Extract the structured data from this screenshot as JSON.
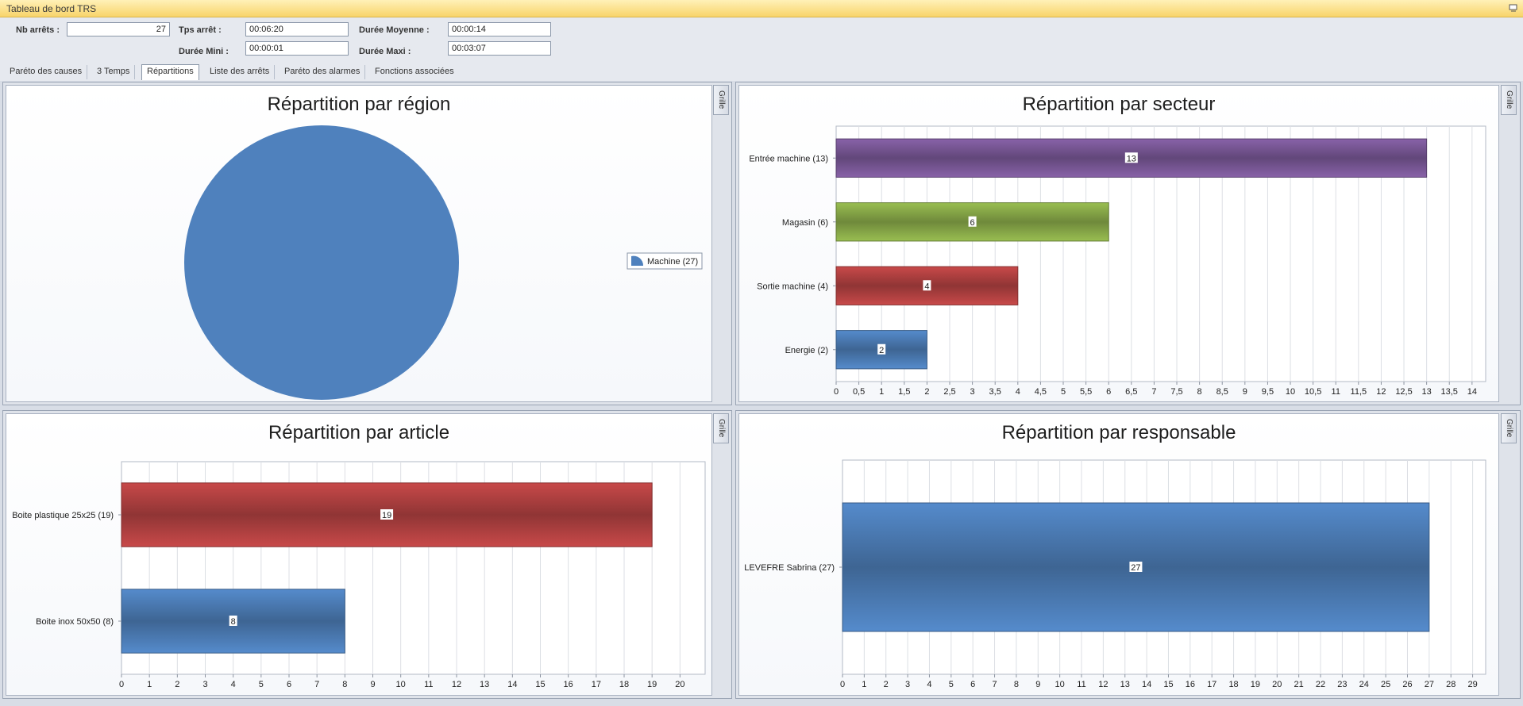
{
  "window": {
    "title": "Tableau de bord TRS"
  },
  "fields": {
    "nb_arrets": {
      "label": "Nb arrêts :",
      "value": "27"
    },
    "tps_arret": {
      "label": "Tps arrêt :",
      "value": "00:06:20"
    },
    "duree_moyenne": {
      "label": "Durée Moyenne :",
      "value": "00:00:14"
    },
    "duree_mini": {
      "label": "Durée Mini :",
      "value": "00:00:01"
    },
    "duree_maxi": {
      "label": "Durée Maxi :",
      "value": "00:03:07"
    }
  },
  "tabs": [
    {
      "label": "Paréto des causes"
    },
    {
      "label": "3 Temps"
    },
    {
      "label": "Répartitions",
      "active": true
    },
    {
      "label": "Liste des arrêts"
    },
    {
      "label": "Paréto des alarmes"
    },
    {
      "label": "Fonctions associées"
    }
  ],
  "grille_label": "Grille",
  "chart_data": [
    {
      "type": "pie",
      "title": "Répartition par région",
      "categories": [
        "Machine (27)"
      ],
      "values": [
        27
      ],
      "colors": [
        "#4f81bd"
      ],
      "legend": "right"
    },
    {
      "type": "bar",
      "orientation": "horizontal",
      "title": "Répartition par secteur",
      "categories": [
        "Entrée machine (13)",
        "Magasin (6)",
        "Sortie machine (4)",
        "Energie (2)"
      ],
      "values": [
        13,
        6,
        4,
        2
      ],
      "colors": [
        "#7e5b9c",
        "#8eb04b",
        "#b94444",
        "#4f81bd"
      ],
      "xlim": [
        0,
        14.3
      ],
      "ticks": [
        "0",
        "0,5",
        "1",
        "1,5",
        "2",
        "2,5",
        "3",
        "3,5",
        "4",
        "4,5",
        "5",
        "5,5",
        "6",
        "6,5",
        "7",
        "7,5",
        "8",
        "8,5",
        "9",
        "9,5",
        "10",
        "10,5",
        "11",
        "11,5",
        "12",
        "12,5",
        "13",
        "13,5",
        "14"
      ],
      "tick_step": 0.5,
      "grid": true
    },
    {
      "type": "bar",
      "orientation": "horizontal",
      "title": "Répartition par article",
      "categories": [
        "Boite plastique 25x25 (19)",
        "Boite inox  50x50 (8)"
      ],
      "values": [
        19,
        8
      ],
      "colors": [
        "#b94444",
        "#4f81bd"
      ],
      "xlim": [
        0,
        20.9
      ],
      "ticks": [
        "0",
        "1",
        "2",
        "3",
        "4",
        "5",
        "6",
        "7",
        "8",
        "9",
        "10",
        "11",
        "12",
        "13",
        "14",
        "15",
        "16",
        "17",
        "18",
        "19",
        "20"
      ],
      "tick_step": 1,
      "grid": true
    },
    {
      "type": "bar",
      "orientation": "horizontal",
      "title": "Répartition par responsable",
      "categories": [
        "LEVEFRE Sabrina (27)"
      ],
      "values": [
        27
      ],
      "colors": [
        "#4f81bd"
      ],
      "xlim": [
        0,
        29.6
      ],
      "ticks": [
        "0",
        "1",
        "2",
        "3",
        "4",
        "5",
        "6",
        "7",
        "8",
        "9",
        "10",
        "11",
        "12",
        "13",
        "14",
        "15",
        "16",
        "17",
        "18",
        "19",
        "20",
        "21",
        "22",
        "23",
        "24",
        "25",
        "26",
        "27",
        "28",
        "29"
      ],
      "tick_step": 1,
      "grid": true
    }
  ]
}
